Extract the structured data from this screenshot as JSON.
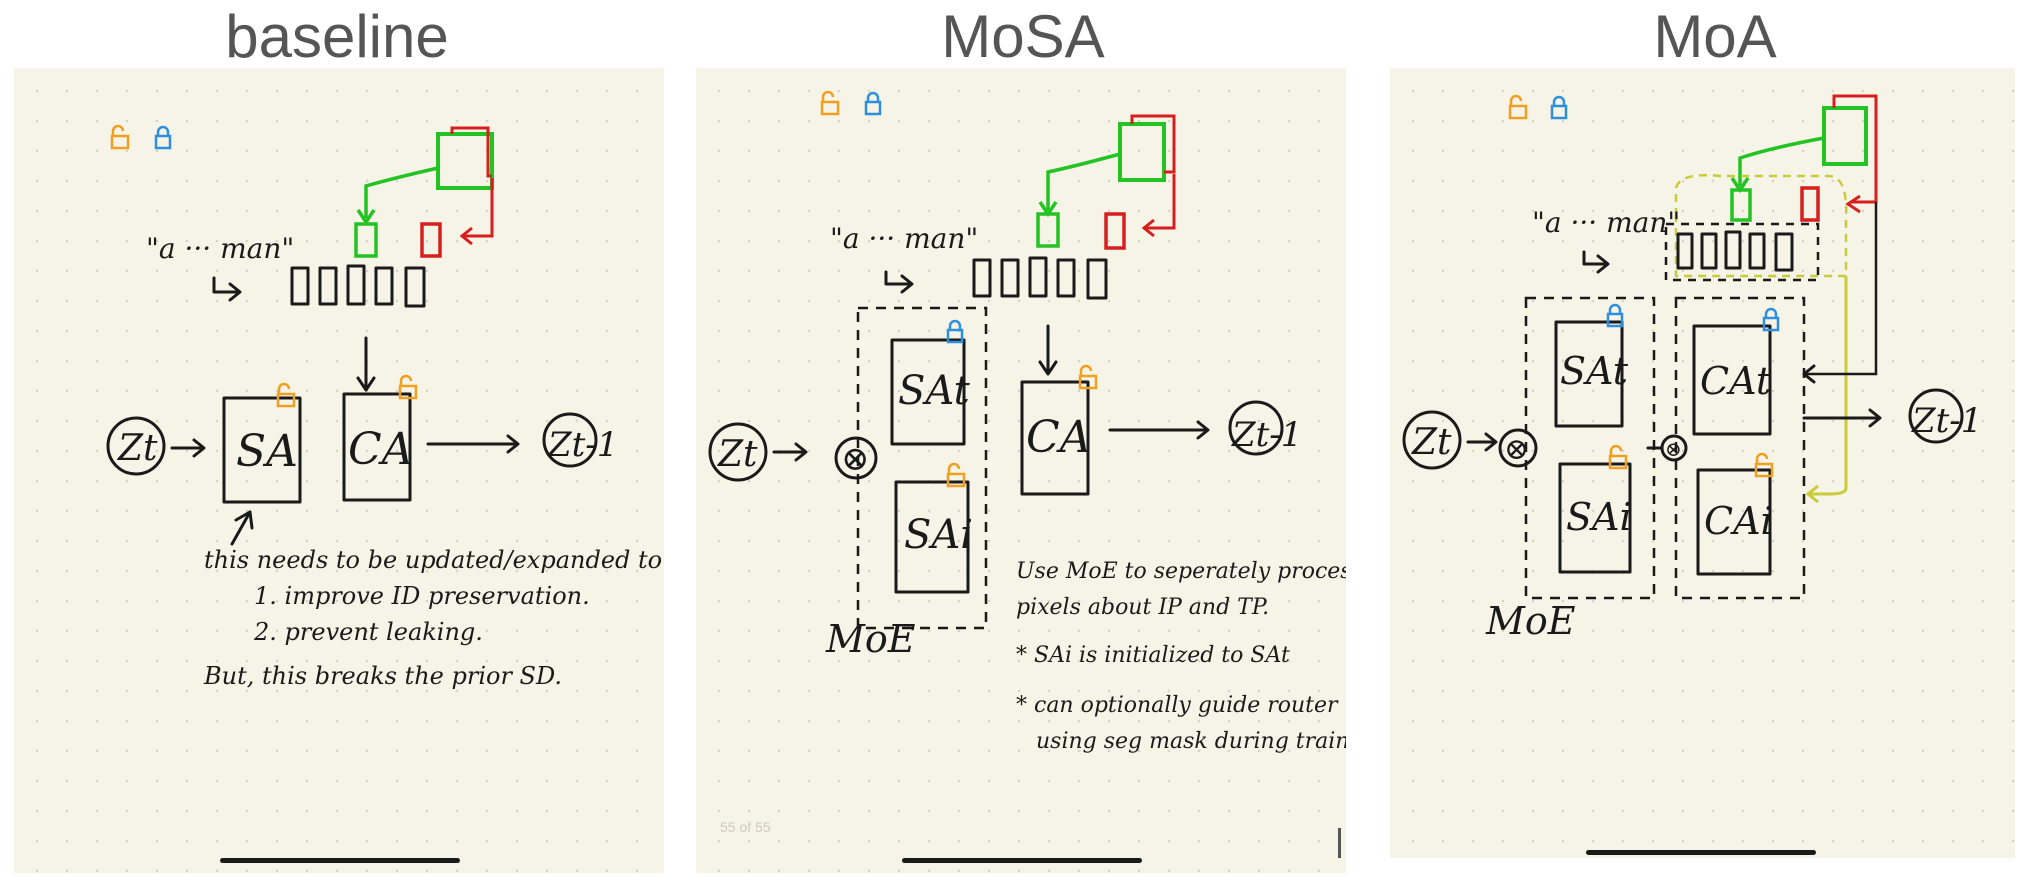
{
  "titles": {
    "baseline": "baseline",
    "mosa": "MoSA",
    "moa": "MoA"
  },
  "colors": {
    "lock_orange": "#f0a020",
    "lock_blue": "#2d8fe0",
    "green": "#22c322",
    "red": "#d81f1f",
    "yellow": "#c8cc3a",
    "paper": "#f6f3e7"
  },
  "baseline": {
    "prompt": "\"a ··· man\"",
    "z_in": "Zt",
    "z_out": "Zt-1",
    "sa": "SA",
    "ca": "CA",
    "note_lines": [
      "this needs to be updated/expanded to",
      "1. improve ID preservation.",
      "2. prevent leaking.",
      "But, this breaks the prior SD."
    ]
  },
  "mosa": {
    "prompt": "\"a ··· man\"",
    "z_in": "Zt",
    "z_out": "Zt-1",
    "sa_t": "SAt",
    "sa_i": "SAi",
    "ca": "CA",
    "router": "⊗",
    "moe": "MoE",
    "page_indicator": "55 of 55",
    "note_lines": [
      "Use MoE to seperately process",
      "pixels about IP and TP.",
      "* SAi is initialized to SAt",
      "* can optionally guide router",
      "using seg mask during training."
    ]
  },
  "moa": {
    "prompt": "\"a ··· man\"",
    "z_in": "Zt",
    "z_out": "Zt-1",
    "sa_t": "SAt",
    "sa_i": "SAi",
    "ca_t": "CAt",
    "ca_i": "CAi",
    "router": "⊗",
    "moe": "MoE"
  }
}
